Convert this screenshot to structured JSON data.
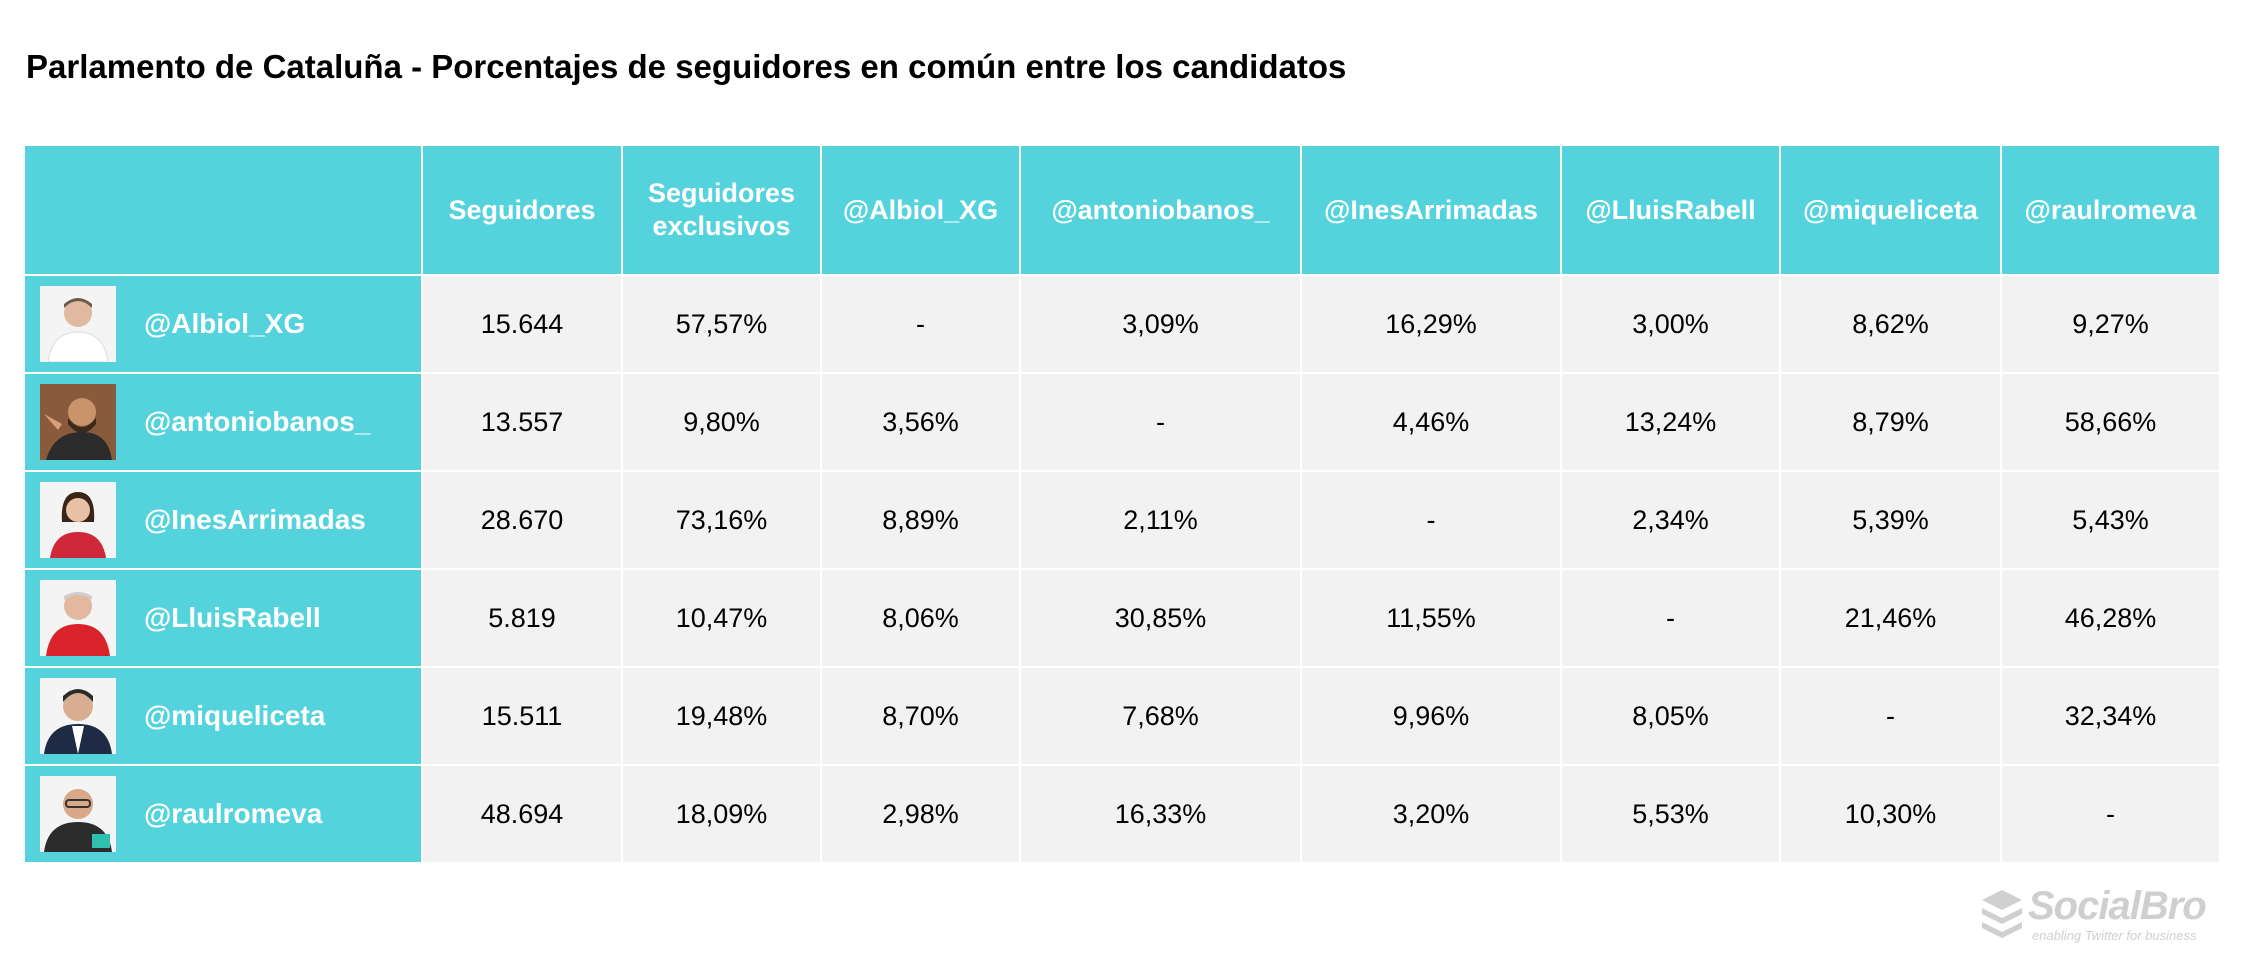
{
  "title": "Parlamento de Cataluña - Porcentajes de seguidores en común entre los candidatos",
  "colors": {
    "header": "#55d3dc",
    "cell": "#f2f2f2",
    "logo": "#cfcfcf"
  },
  "columns": {
    "seguidores": "Seguidores",
    "exclusivos_1": "Seguidores",
    "exclusivos_2": "exclusivos",
    "c1": "@Albiol_XG",
    "c2": "@antoniobanos_",
    "c3": "@InesArrimadas",
    "c4": "@LluisRabell",
    "c5": "@miqueliceta",
    "c6": "@raulromeva"
  },
  "rows": [
    {
      "handle": "@Albiol_XG",
      "avatar": "person-photo-icon",
      "cells": [
        "15.644",
        "57,57%",
        "-",
        "3,09%",
        "16,29%",
        "3,00%",
        "8,62%",
        "9,27%"
      ]
    },
    {
      "handle": "@antoniobanos_",
      "avatar": "person-photo-icon",
      "cells": [
        "13.557",
        "9,80%",
        "3,56%",
        "-",
        "4,46%",
        "13,24%",
        "8,79%",
        "58,66%"
      ]
    },
    {
      "handle": "@InesArrimadas",
      "avatar": "person-photo-icon",
      "cells": [
        "28.670",
        "73,16%",
        "8,89%",
        "2,11%",
        "-",
        "2,34%",
        "5,39%",
        "5,43%"
      ]
    },
    {
      "handle": "@LluisRabell",
      "avatar": "person-photo-icon",
      "cells": [
        "5.819",
        "10,47%",
        "8,06%",
        "30,85%",
        "11,55%",
        "-",
        "21,46%",
        "46,28%"
      ]
    },
    {
      "handle": "@miqueliceta",
      "avatar": "person-photo-icon",
      "cells": [
        "15.511",
        "19,48%",
        "8,70%",
        "7,68%",
        "9,96%",
        "8,05%",
        "-",
        "32,34%"
      ]
    },
    {
      "handle": "@raulromeva",
      "avatar": "person-photo-icon",
      "cells": [
        "48.694",
        "18,09%",
        "2,98%",
        "16,33%",
        "3,20%",
        "5,53%",
        "10,30%",
        "-"
      ]
    }
  ],
  "logo": {
    "name": "SocialBro",
    "tagline": "enabling Twitter for business"
  }
}
